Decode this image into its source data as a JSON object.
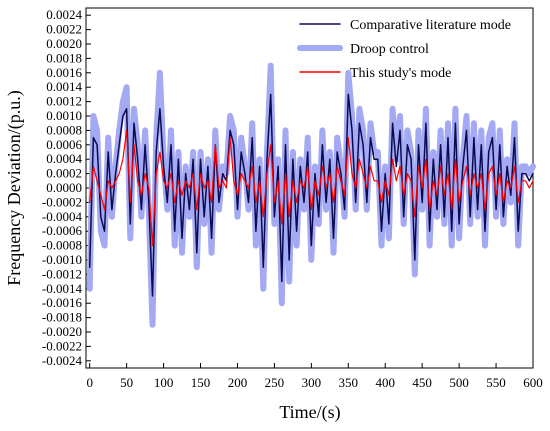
{
  "chart_data": {
    "type": "line",
    "xlabel": "Time/(s)",
    "ylabel": "Frequency Deviation/(p.u.)",
    "xlim": [
      -5,
      600
    ],
    "ylim": [
      -0.0025,
      0.0025
    ],
    "xticks": [
      0,
      50,
      100,
      150,
      200,
      250,
      300,
      350,
      400,
      450,
      500,
      550,
      600
    ],
    "yticks": [
      "-0.0024",
      "-0.0022",
      "-0.0020",
      "-0.0018",
      "-0.0016",
      "-0.0014",
      "-0.0012",
      "-0.0010",
      "-0.0008",
      "-0.0006",
      "-0.0004",
      "-0.0002",
      "0.0000",
      "0.0002",
      "0.0004",
      "0.0006",
      "0.0008",
      "0.0010",
      "0.0012",
      "0.0014",
      "0.0016",
      "0.0018",
      "0.0020",
      "0.0022",
      "0.0024"
    ],
    "legend_position": "top-right",
    "grid": false,
    "series": [
      {
        "name": "Comparative literature mode",
        "color": "#0b0b50",
        "x": [
          0,
          5,
          10,
          15,
          20,
          25,
          30,
          35,
          40,
          45,
          50,
          55,
          60,
          65,
          70,
          75,
          80,
          85,
          90,
          95,
          100,
          105,
          110,
          115,
          120,
          125,
          130,
          135,
          140,
          145,
          150,
          155,
          160,
          165,
          170,
          175,
          180,
          185,
          190,
          195,
          200,
          205,
          210,
          215,
          220,
          225,
          230,
          235,
          240,
          245,
          250,
          255,
          260,
          265,
          270,
          275,
          280,
          285,
          290,
          295,
          300,
          305,
          310,
          315,
          320,
          325,
          330,
          335,
          340,
          345,
          350,
          355,
          360,
          365,
          370,
          375,
          380,
          385,
          390,
          395,
          400,
          405,
          410,
          415,
          420,
          425,
          430,
          435,
          440,
          445,
          450,
          455,
          460,
          465,
          470,
          475,
          480,
          485,
          490,
          495,
          500,
          505,
          510,
          515,
          520,
          525,
          530,
          535,
          540,
          545,
          550,
          555,
          560,
          565,
          570,
          575,
          580,
          585,
          590,
          595,
          600
        ],
        "y": [
          -0.0011,
          0.0007,
          0.0006,
          -0.0004,
          -0.0006,
          0.0005,
          -0.0003,
          0.0002,
          0.0006,
          0.001,
          0.0011,
          -0.0005,
          0.0009,
          0.0004,
          -0.0003,
          0.0006,
          -0.0002,
          -0.0015,
          0.0005,
          0.0011,
          0.0003,
          -0.0002,
          0.0006,
          -0.0006,
          0.0004,
          -0.0007,
          0.0002,
          -0.0003,
          0.0004,
          -0.0009,
          0.0004,
          -0.0004,
          0.0003,
          -0.0007,
          0.0006,
          -0.0002,
          0.0002,
          0.0001,
          0.0008,
          0.0006,
          -0.0003,
          0.0005,
          0.0002,
          -0.0002,
          0.0007,
          -0.0006,
          0.0003,
          -0.0011,
          0.0004,
          0.0013,
          -0.0004,
          0.0003,
          -0.0013,
          0.0006,
          -0.001,
          0.0004,
          -0.0006,
          0.0003,
          -0.0002,
          0.0005,
          -0.0008,
          0.0002,
          -0.0004,
          0.0006,
          -0.0002,
          0.0004,
          -0.0007,
          0.0005,
          0.0002,
          -0.0003,
          0.0013,
          0.0008,
          -0.0002,
          0.0009,
          0.0006,
          -0.0002,
          0.0007,
          0.0004,
          0.0004,
          -0.0006,
          0.0002,
          -0.0005,
          0.0009,
          0.0003,
          0.0008,
          -0.0004,
          0.0006,
          0.0004,
          -0.001,
          0.0006,
          -0.0002,
          0.0009,
          -0.0006,
          0.0004,
          -0.0003,
          0.0006,
          -0.0004,
          0.0007,
          -0.0006,
          0.0009,
          -0.0005,
          0.0003,
          0.0008,
          -0.0004,
          0.0007,
          -0.0003,
          0.0006,
          -0.0006,
          0.0005,
          0.0007,
          -0.0003,
          0.0006,
          -0.0004,
          0.0003,
          -0.0001,
          0.0007,
          -0.0006,
          0.0002,
          0.0002,
          0.0001,
          0.0002
        ]
      },
      {
        "name": "Droop control",
        "color": "#a3a9f3",
        "x": [
          0,
          5,
          10,
          15,
          20,
          25,
          30,
          35,
          40,
          45,
          50,
          55,
          60,
          65,
          70,
          75,
          80,
          85,
          90,
          95,
          100,
          105,
          110,
          115,
          120,
          125,
          130,
          135,
          140,
          145,
          150,
          155,
          160,
          165,
          170,
          175,
          180,
          185,
          190,
          195,
          200,
          205,
          210,
          215,
          220,
          225,
          230,
          235,
          240,
          245,
          250,
          255,
          260,
          265,
          270,
          275,
          280,
          285,
          290,
          295,
          300,
          305,
          310,
          315,
          320,
          325,
          330,
          335,
          340,
          345,
          350,
          355,
          360,
          365,
          370,
          375,
          380,
          385,
          390,
          395,
          400,
          405,
          410,
          415,
          420,
          425,
          430,
          435,
          440,
          445,
          450,
          455,
          460,
          465,
          470,
          475,
          480,
          485,
          490,
          495,
          500,
          505,
          510,
          515,
          520,
          525,
          530,
          535,
          540,
          545,
          550,
          555,
          560,
          565,
          570,
          575,
          580,
          585,
          590,
          595,
          600
        ],
        "y": [
          -0.0014,
          0.001,
          0.0008,
          -0.0006,
          -0.0008,
          0.0007,
          -0.0004,
          0.0003,
          0.0008,
          0.0012,
          0.0014,
          -0.0007,
          0.0011,
          0.0006,
          -0.0004,
          0.0008,
          -0.0003,
          -0.0019,
          0.0007,
          0.0016,
          0.0004,
          -0.0003,
          0.0008,
          -0.0008,
          0.0005,
          -0.0009,
          0.0003,
          -0.0004,
          0.0005,
          -0.0011,
          0.0005,
          -0.0005,
          0.0004,
          -0.0009,
          0.0008,
          -0.0003,
          0.0003,
          0.0002,
          0.001,
          0.0008,
          -0.0004,
          0.0007,
          0.0003,
          -0.0003,
          0.0009,
          -0.0008,
          0.0004,
          -0.0014,
          0.0005,
          0.0017,
          -0.0005,
          0.0004,
          -0.0016,
          0.0008,
          -0.0013,
          0.0005,
          -0.0008,
          0.0004,
          -0.0003,
          0.0007,
          -0.001,
          0.0003,
          -0.0005,
          0.0008,
          -0.0003,
          0.0005,
          -0.0009,
          0.0007,
          0.0003,
          -0.0004,
          0.0016,
          0.001,
          -0.0003,
          0.0011,
          0.0008,
          -0.0003,
          0.0009,
          0.0005,
          0.0005,
          -0.0008,
          0.0003,
          -0.0007,
          0.0011,
          0.0004,
          0.001,
          -0.0005,
          0.0008,
          0.0005,
          -0.0012,
          0.0008,
          -0.0003,
          0.0011,
          -0.0008,
          0.0005,
          -0.0004,
          0.0008,
          -0.0005,
          0.0009,
          -0.0008,
          0.0011,
          -0.0007,
          0.0004,
          0.001,
          -0.0005,
          0.0009,
          -0.0004,
          0.0008,
          -0.0008,
          0.0007,
          0.0009,
          -0.0004,
          0.0008,
          -0.0005,
          0.0004,
          -0.0002,
          0.0009,
          -0.0008,
          0.0003,
          0.0003,
          0.0002,
          0.0003
        ]
      },
      {
        "name": "This study's mode",
        "color": "#ff0000",
        "x": [
          0,
          5,
          10,
          15,
          20,
          25,
          30,
          35,
          40,
          45,
          50,
          55,
          60,
          65,
          70,
          75,
          80,
          85,
          90,
          95,
          100,
          105,
          110,
          115,
          120,
          125,
          130,
          135,
          140,
          145,
          150,
          155,
          160,
          165,
          170,
          175,
          180,
          185,
          190,
          195,
          200,
          205,
          210,
          215,
          220,
          225,
          230,
          235,
          240,
          245,
          250,
          255,
          260,
          265,
          270,
          275,
          280,
          285,
          290,
          295,
          300,
          305,
          310,
          315,
          320,
          325,
          330,
          335,
          340,
          345,
          350,
          355,
          360,
          365,
          370,
          375,
          380,
          385,
          390,
          395,
          400,
          405,
          410,
          415,
          420,
          425,
          430,
          435,
          440,
          445,
          450,
          455,
          460,
          465,
          470,
          475,
          480,
          485,
          490,
          495,
          500,
          505,
          510,
          515,
          520,
          525,
          530,
          535,
          540,
          545,
          550,
          555,
          560,
          565,
          570,
          575,
          580,
          585,
          590,
          595,
          600
        ],
        "y": [
          -0.0002,
          0.0003,
          0.0001,
          -0.0001,
          -0.0003,
          0.0001,
          0.0,
          0.0001,
          0.0002,
          0.0004,
          0.0008,
          -0.0002,
          0.0006,
          0.0001,
          -0.0001,
          0.0002,
          0.0,
          -0.0008,
          0.0002,
          0.0005,
          0.0001,
          0.0,
          0.0002,
          -0.0002,
          0.0001,
          -0.0001,
          0.0001,
          0.0,
          0.0002,
          -0.0003,
          0.0002,
          0.0,
          0.0001,
          -0.0002,
          0.0006,
          0.0,
          0.0001,
          0.0,
          0.0007,
          0.0001,
          -0.0001,
          0.0002,
          0.0001,
          0.0,
          0.0003,
          -0.0002,
          0.0001,
          -0.0004,
          0.0002,
          0.0006,
          -0.0002,
          0.0001,
          -0.0005,
          0.0002,
          -0.0004,
          0.0001,
          -0.0002,
          0.0001,
          0.0,
          0.0003,
          -0.0003,
          0.0001,
          -0.0001,
          0.0003,
          0.0,
          0.0002,
          -0.0002,
          0.0003,
          0.0001,
          -0.0001,
          0.0007,
          0.0002,
          0.0,
          0.0004,
          0.0002,
          0.0,
          0.0003,
          0.0001,
          0.0001,
          -0.0002,
          0.0001,
          -0.0001,
          0.0004,
          0.0001,
          0.0003,
          -0.0001,
          0.0002,
          0.0001,
          -0.0004,
          0.0003,
          0.0,
          0.0004,
          -0.0003,
          0.0001,
          -0.0001,
          0.0003,
          -0.0001,
          0.0002,
          -0.0003,
          0.0004,
          -0.0002,
          0.0001,
          0.0003,
          -0.0001,
          0.0002,
          0.0,
          0.0002,
          -0.0003,
          0.0002,
          0.0003,
          -0.0001,
          0.0002,
          -0.0002,
          0.0001,
          0.0,
          0.0003,
          -0.0002,
          0.0001,
          0.0001,
          0.0,
          0.0001
        ]
      }
    ]
  }
}
